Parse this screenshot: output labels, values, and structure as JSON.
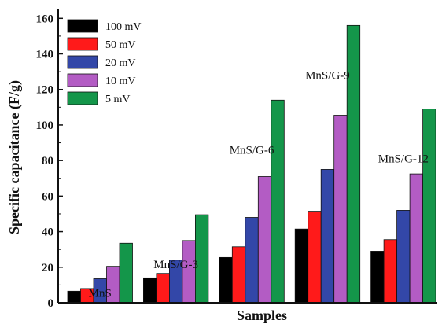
{
  "chart_data": {
    "type": "bar",
    "xlabel": "Samples",
    "ylabel": "Specific capacitance (F/g)",
    "ylim": [
      0,
      165
    ],
    "yticks": [
      0,
      20,
      40,
      60,
      80,
      100,
      120,
      140,
      160
    ],
    "grid": false,
    "legend_position": "top-left",
    "categories": [
      "MnS",
      "MnS/G-3",
      "MnS/G-6",
      "MnS/G-9",
      "MnS/G-12"
    ],
    "series": [
      {
        "name": "100 mV",
        "color": "#000000",
        "values": [
          6.5,
          14,
          25.5,
          41.5,
          29
        ]
      },
      {
        "name": "50 mV",
        "color": "#ff1a1a",
        "values": [
          8,
          16.5,
          31.5,
          51.5,
          35.5
        ]
      },
      {
        "name": "20 mV",
        "color": "#3347a8",
        "values": [
          13.5,
          24,
          48,
          75,
          52
        ]
      },
      {
        "name": "10 mV",
        "color": "#b35cc4",
        "values": [
          20.5,
          35,
          71,
          105.5,
          72.5
        ]
      },
      {
        "name": "5 mV",
        "color": "#14964a",
        "values": [
          33.5,
          49.5,
          114,
          156,
          109
        ]
      }
    ]
  }
}
